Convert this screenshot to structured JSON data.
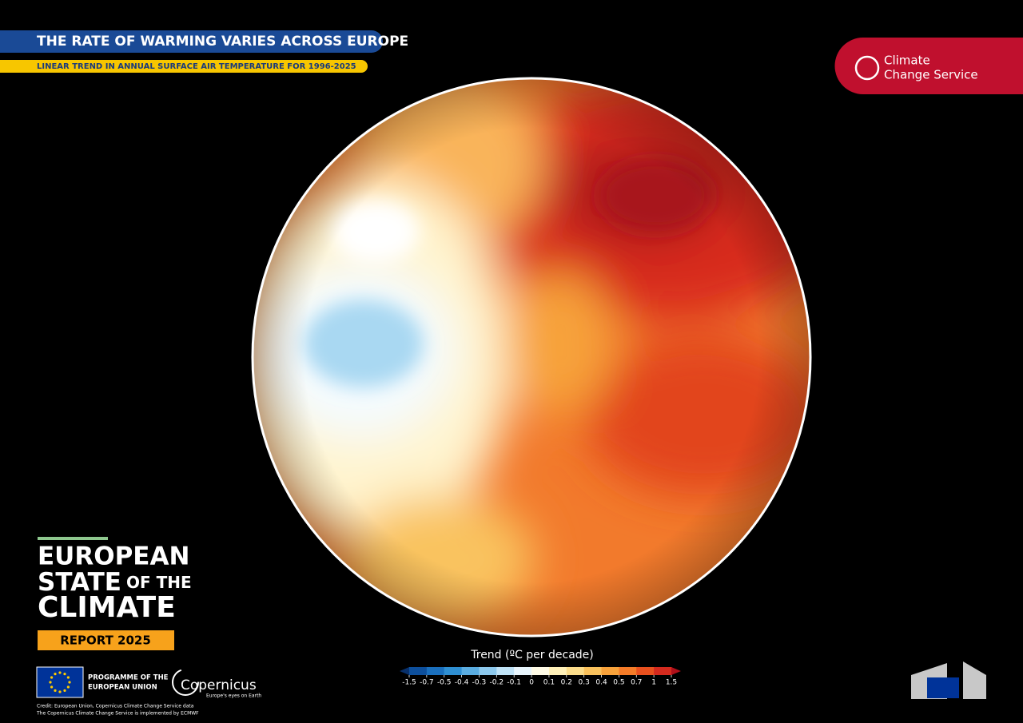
{
  "header": {
    "title": "THE RATE OF WARMING VARIES ACROSS EUROPE",
    "subtitle": "LINEAR TREND IN ANNUAL SURFACE AIR TEMPERATURE FOR 1996-2025"
  },
  "logo": {
    "line1": "Climate",
    "line2": "Change Service"
  },
  "report": {
    "line1": "EUROPEAN",
    "line2a": "STATE",
    "line2b": "OF THE",
    "line3": "CLIMATE",
    "badge": "REPORT 2025"
  },
  "legend": {
    "title": "Trend (ºC per decade)",
    "ticks": [
      -1.5,
      -0.7,
      -0.5,
      -0.4,
      -0.3,
      -0.2,
      -0.1,
      0,
      0.1,
      0.2,
      0.3,
      0.4,
      0.5,
      0.7,
      1,
      1.5
    ],
    "colors": [
      "#08306b",
      "#0d4f9c",
      "#1a6fbd",
      "#2f8fd2",
      "#5aace0",
      "#8cc8ec",
      "#bfe2f6",
      "#e8f5fc",
      "#fffbe6",
      "#fff0b8",
      "#fbdc8a",
      "#f9c15c",
      "#f7a23b",
      "#f47b28",
      "#e8501e",
      "#d42a1e",
      "#b0101a"
    ]
  },
  "footer": {
    "programme_line1": "PROGRAMME OF THE",
    "programme_line2": "EUROPEAN UNION",
    "copernicus": "Copernicus",
    "copernicus_tagline": "Europe's eyes on Earth",
    "credit1": "Credit: European Union, Copernicus Climate Change Service data",
    "credit2": "The Copernicus Climate Change Service is implemented by ECMWF"
  }
}
